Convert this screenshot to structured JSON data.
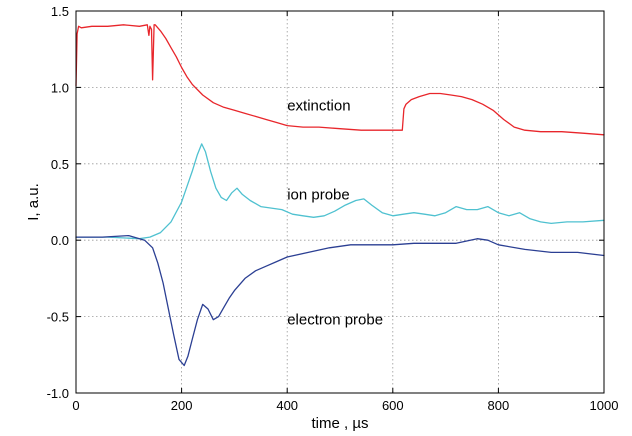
{
  "chart_data": {
    "type": "line",
    "xlabel": "time ,  µs",
    "ylabel": "I, a.u.",
    "xlim": [
      0,
      1000
    ],
    "ylim": [
      -1.0,
      1.5
    ],
    "xticks": [
      0,
      200,
      400,
      600,
      800,
      1000
    ],
    "xtick_labels": [
      "0",
      "200",
      "400",
      "600",
      "800",
      "1000"
    ],
    "yticks": [
      -1.0,
      -0.5,
      0.0,
      0.5,
      1.0,
      1.5
    ],
    "ytick_labels": [
      "-1.0",
      "-0.5",
      "0.0",
      "0.5",
      "1.0",
      "1.5"
    ],
    "grid": true,
    "series": [
      {
        "name": "extinction",
        "color": "#e8262b",
        "x": [
          0,
          2,
          5,
          10,
          30,
          60,
          90,
          120,
          135,
          138,
          140,
          143,
          145,
          148,
          150,
          160,
          170,
          180,
          190,
          200,
          210,
          220,
          240,
          260,
          280,
          300,
          320,
          340,
          360,
          380,
          400,
          430,
          460,
          500,
          540,
          580,
          610,
          618,
          621,
          625,
          635,
          650,
          670,
          690,
          710,
          730,
          750,
          770,
          790,
          810,
          830,
          850,
          880,
          920,
          960,
          1000
        ],
        "y": [
          1.01,
          1.35,
          1.4,
          1.39,
          1.4,
          1.4,
          1.41,
          1.4,
          1.41,
          1.34,
          1.4,
          1.38,
          1.05,
          1.41,
          1.41,
          1.37,
          1.32,
          1.26,
          1.2,
          1.13,
          1.07,
          1.02,
          0.95,
          0.9,
          0.87,
          0.85,
          0.83,
          0.81,
          0.79,
          0.77,
          0.75,
          0.74,
          0.74,
          0.73,
          0.72,
          0.72,
          0.72,
          0.72,
          0.86,
          0.89,
          0.92,
          0.94,
          0.96,
          0.96,
          0.95,
          0.94,
          0.92,
          0.89,
          0.85,
          0.79,
          0.74,
          0.72,
          0.71,
          0.71,
          0.7,
          0.69
        ]
      },
      {
        "name": "ion probe",
        "color": "#4fc1d0",
        "x": [
          0,
          60,
          120,
          140,
          160,
          180,
          200,
          210,
          220,
          230,
          238,
          245,
          255,
          265,
          275,
          285,
          295,
          305,
          315,
          330,
          350,
          370,
          390,
          410,
          430,
          450,
          470,
          490,
          510,
          530,
          545,
          560,
          580,
          600,
          620,
          640,
          660,
          680,
          700,
          720,
          740,
          760,
          780,
          800,
          820,
          840,
          860,
          880,
          900,
          930,
          960,
          1000
        ],
        "y": [
          0.02,
          0.02,
          0.01,
          0.02,
          0.05,
          0.12,
          0.25,
          0.35,
          0.45,
          0.56,
          0.63,
          0.58,
          0.45,
          0.34,
          0.28,
          0.26,
          0.31,
          0.34,
          0.3,
          0.26,
          0.22,
          0.21,
          0.2,
          0.17,
          0.16,
          0.15,
          0.16,
          0.19,
          0.23,
          0.26,
          0.27,
          0.23,
          0.18,
          0.16,
          0.17,
          0.18,
          0.17,
          0.16,
          0.18,
          0.22,
          0.2,
          0.2,
          0.22,
          0.18,
          0.16,
          0.18,
          0.14,
          0.12,
          0.11,
          0.12,
          0.12,
          0.13
        ]
      },
      {
        "name": "electron probe",
        "color": "#2b3f93",
        "x": [
          0,
          50,
          100,
          130,
          145,
          155,
          165,
          175,
          185,
          195,
          205,
          212,
          220,
          230,
          240,
          250,
          260,
          270,
          280,
          290,
          300,
          320,
          340,
          360,
          380,
          400,
          440,
          480,
          520,
          560,
          600,
          640,
          680,
          720,
          760,
          780,
          800,
          850,
          900,
          950,
          1000
        ],
        "y": [
          0.02,
          0.02,
          0.03,
          0.0,
          -0.05,
          -0.15,
          -0.28,
          -0.45,
          -0.62,
          -0.78,
          -0.82,
          -0.76,
          -0.65,
          -0.52,
          -0.42,
          -0.45,
          -0.52,
          -0.5,
          -0.44,
          -0.38,
          -0.33,
          -0.25,
          -0.2,
          -0.17,
          -0.14,
          -0.11,
          -0.08,
          -0.05,
          -0.03,
          -0.03,
          -0.03,
          -0.02,
          -0.02,
          -0.02,
          0.01,
          0.0,
          -0.03,
          -0.06,
          -0.08,
          -0.08,
          -0.1
        ]
      }
    ],
    "annotations": [
      {
        "text": "extinction",
        "x": 400,
        "y": 0.88
      },
      {
        "text": "ion probe",
        "x": 400,
        "y": 0.3
      },
      {
        "text": "electron probe",
        "x": 400,
        "y": -0.52
      }
    ]
  }
}
